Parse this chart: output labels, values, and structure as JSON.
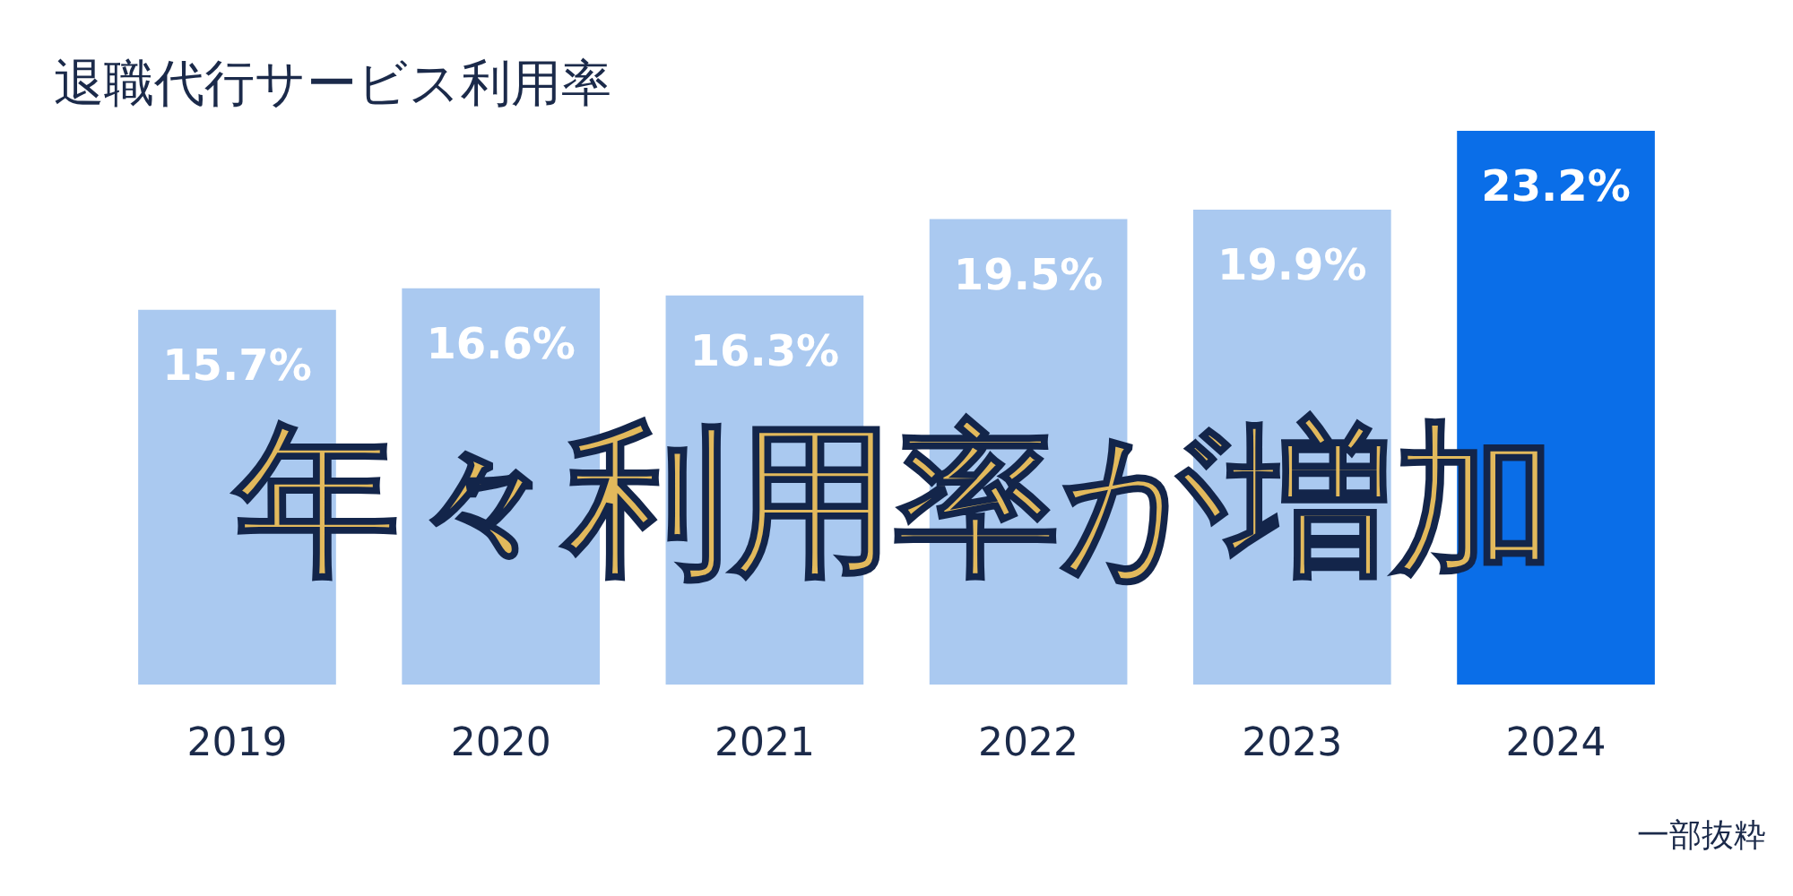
{
  "chart_data": {
    "type": "bar",
    "title": "退職代行サービス利用率",
    "categories": [
      "2019",
      "2020",
      "2021",
      "2022",
      "2023",
      "2024"
    ],
    "values": [
      15.7,
      16.6,
      16.3,
      19.5,
      19.9,
      23.2
    ],
    "colors": [
      "#aac9f0",
      "#aac9f0",
      "#aac9f0",
      "#aac9f0",
      "#aac9f0",
      "#0a6ee8"
    ],
    "value_labels": [
      "15.7%",
      "16.6%",
      "16.3%",
      "19.5%",
      "19.9%",
      "23.2%"
    ],
    "annotations": [
      "年々利用率が増加",
      "一部抜粋"
    ]
  }
}
